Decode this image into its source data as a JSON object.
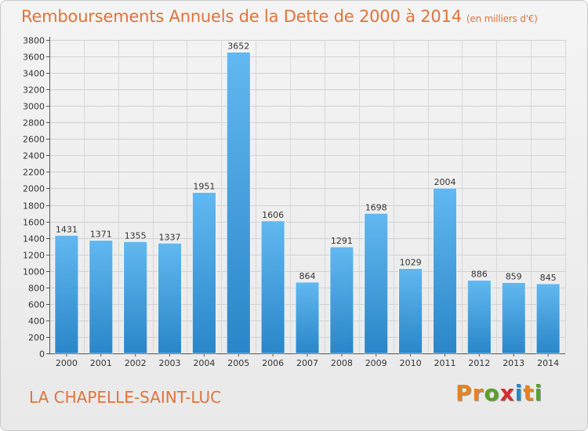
{
  "header": {
    "title": "Remboursements Annuels de la Dette de 2000 à 2014",
    "unit": "(en milliers d'€)"
  },
  "footer": {
    "city": "LA CHAPELLE-SAINT-LUC",
    "logo": "Proxiti"
  },
  "colors": {
    "title": "#e0743c",
    "bar_light": "#62b8f0",
    "bar_dark": "#2a86c8",
    "logo_letters": [
      "#e8821e",
      "#e8821e",
      "#5aa02c",
      "#d42e2e",
      "#2a86c8",
      "#e8821e",
      "#5aa02c"
    ]
  },
  "chart_data": {
    "type": "bar",
    "title": "Remboursements Annuels de la Dette de 2000 à 2014",
    "xlabel": "",
    "ylabel": "",
    "categories": [
      "2000",
      "2001",
      "2002",
      "2003",
      "2004",
      "2005",
      "2006",
      "2007",
      "2008",
      "2009",
      "2010",
      "2011",
      "2012",
      "2013",
      "2014"
    ],
    "values": [
      1431,
      1371,
      1355,
      1337,
      1951,
      3652,
      1606,
      864,
      1291,
      1698,
      1029,
      2004,
      886,
      859,
      845
    ],
    "ylim": [
      0,
      3800
    ],
    "ytick_step": 200,
    "grid": true
  }
}
